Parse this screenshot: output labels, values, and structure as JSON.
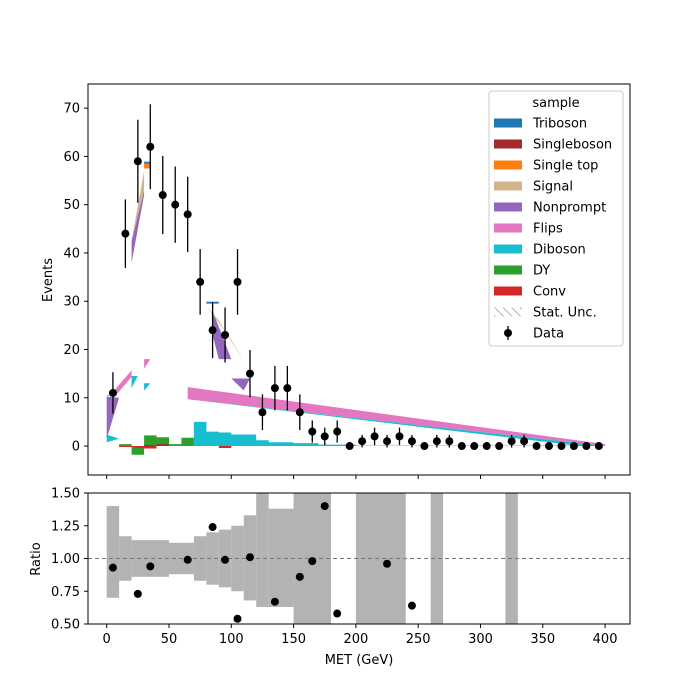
{
  "chart_data": [
    {
      "type": "stacked-bar-with-points",
      "panel": "main",
      "ylabel": "Events",
      "ylim": [
        -6,
        75
      ],
      "yticks": [
        "0",
        "10",
        "20",
        "30",
        "40",
        "50",
        "60",
        "70"
      ],
      "xlim": [
        -15,
        420
      ],
      "bin_width": 10,
      "legend": {
        "title": "sample",
        "placement": "top-right",
        "entries": [
          {
            "label": "Triboson",
            "color": "#1f77b4",
            "kind": "patch"
          },
          {
            "label": "Singleboson",
            "color": "#a52a2a",
            "kind": "patch"
          },
          {
            "label": "Single top",
            "color": "#ff7f0e",
            "kind": "patch"
          },
          {
            "label": "Signal",
            "color": "#d2b48c",
            "kind": "patch"
          },
          {
            "label": "Nonprompt",
            "color": "#9467bd",
            "kind": "patch"
          },
          {
            "label": "Flips",
            "color": "#e377c2",
            "kind": "patch"
          },
          {
            "label": "Diboson",
            "color": "#17becf",
            "kind": "patch"
          },
          {
            "label": "DY",
            "color": "#2ca02c",
            "kind": "patch"
          },
          {
            "label": "Conv",
            "color": "#d62728",
            "kind": "patch"
          },
          {
            "label": "Stat. Unc.",
            "color": "#888888",
            "kind": "hatch"
          },
          {
            "label": "Data",
            "color": "#000000",
            "kind": "marker"
          }
        ]
      },
      "series": [
        {
          "name": "Data",
          "x": [
            5,
            15,
            25,
            35,
            45,
            55,
            65,
            75,
            85,
            95,
            105,
            115,
            125,
            135,
            145,
            155,
            165,
            175,
            185,
            195,
            205,
            215,
            225,
            235,
            245,
            255,
            265,
            275,
            285,
            295,
            305,
            315,
            325,
            335,
            345,
            355,
            365,
            375,
            385,
            395
          ],
          "values": [
            11,
            44,
            59,
            62,
            52,
            50,
            48,
            34,
            24,
            23,
            34,
            15,
            7,
            12,
            12,
            7,
            3,
            2,
            3,
            0,
            1,
            2,
            1,
            2,
            1,
            0,
            1,
            1,
            0,
            0,
            0,
            0,
            1,
            1,
            0,
            0,
            0,
            0,
            0,
            0
          ],
          "errors": [
            4.3,
            7.1,
            8.6,
            8.8,
            8.1,
            7.9,
            7.8,
            6.8,
            5.8,
            5.7,
            6.8,
            4.9,
            3.7,
            4.6,
            4.6,
            3.7,
            2.3,
            1.8,
            2.3,
            0,
            1.3,
            1.8,
            1.3,
            1.8,
            1.3,
            0,
            1.3,
            1.3,
            0,
            0,
            0,
            0,
            1.3,
            1.3,
            0,
            0,
            0,
            0,
            0,
            0
          ]
        }
      ],
      "stack_segments": [
        {
          "sample": "Flips",
          "color": "#e377c2",
          "shape": "band",
          "points": [
            [
              5,
              9.8
            ],
            [
              20,
              14.3
            ],
            [
              20,
              15.7
            ],
            [
              5,
              11.2
            ]
          ]
        },
        {
          "sample": "Flips",
          "color": "#e377c2",
          "shape": "band",
          "points": [
            [
              30,
              16
            ],
            [
              35,
              18
            ],
            [
              30,
              18
            ]
          ]
        },
        {
          "sample": "Flips",
          "color": "#e377c2",
          "shape": "band",
          "points": [
            [
              65,
              12.2
            ],
            [
              400,
              0.4
            ],
            [
              400,
              0
            ],
            [
              65,
              9.7
            ]
          ]
        },
        {
          "sample": "Diboson",
          "color": "#17becf",
          "shape": "band",
          "points": [
            [
              65,
              9.7
            ],
            [
              400,
              0
            ],
            [
              380,
              0
            ],
            [
              65,
              9.7
            ]
          ]
        },
        {
          "sample": "Diboson",
          "color": "#17becf",
          "shape": "steps",
          "points": [
            [
              70,
              9.9
            ],
            [
              70,
              5
            ],
            [
              80,
              5
            ],
            [
              80,
              3
            ],
            [
              90,
              3
            ],
            [
              90,
              2.8
            ],
            [
              100,
              2.8
            ],
            [
              100,
              2.4
            ],
            [
              120,
              2.4
            ],
            [
              120,
              1.2
            ],
            [
              130,
              1.2
            ],
            [
              130,
              0.8
            ],
            [
              150,
              0.8
            ],
            [
              150,
              0.6
            ],
            [
              170,
              0.6
            ],
            [
              170,
              0.3
            ],
            [
              200,
              0.3
            ],
            [
              200,
              0.1
            ],
            [
              380,
              0.1
            ],
            [
              380,
              0
            ],
            [
              400,
              0
            ]
          ]
        },
        {
          "sample": "Diboson",
          "color": "#17becf",
          "shape": "band",
          "points": [
            [
              0,
              0.8
            ],
            [
              10,
              1.5
            ],
            [
              0,
              2.4
            ]
          ]
        },
        {
          "sample": "Diboson",
          "color": "#17becf",
          "shape": "band",
          "points": [
            [
              20,
              12
            ],
            [
              25,
              14.5
            ],
            [
              20,
              14.5
            ]
          ]
        },
        {
          "sample": "Diboson",
          "color": "#17becf",
          "shape": "band",
          "points": [
            [
              30,
              11.5
            ],
            [
              35,
              13
            ],
            [
              30,
              13
            ]
          ]
        },
        {
          "sample": "Nonprompt",
          "color": "#9467bd",
          "shape": "band",
          "points": [
            [
              0,
              1.5
            ],
            [
              10,
              10
            ],
            [
              0,
              10.2
            ]
          ]
        },
        {
          "sample": "Nonprompt",
          "color": "#9467bd",
          "shape": "band",
          "points": [
            [
              20,
              38
            ],
            [
              30,
              52
            ],
            [
              30,
              53
            ],
            [
              20,
              42.5
            ]
          ]
        },
        {
          "sample": "Nonprompt",
          "color": "#9467bd",
          "shape": "band",
          "points": [
            [
              85,
              23
            ],
            [
              90,
              18
            ],
            [
              100,
              18
            ],
            [
              85,
              28
            ]
          ]
        },
        {
          "sample": "Nonprompt",
          "color": "#9467bd",
          "shape": "band",
          "points": [
            [
              100,
              14
            ],
            [
              110,
              11.5
            ],
            [
              115,
              14
            ]
          ]
        },
        {
          "sample": "Signal",
          "color": "#d2b48c",
          "shape": "band",
          "points": [
            [
              0,
              10.2
            ],
            [
              5,
              10.6
            ],
            [
              0,
              10.6
            ]
          ]
        },
        {
          "sample": "Signal",
          "color": "#d2b48c",
          "shape": "band",
          "points": [
            [
              20,
              42.5
            ],
            [
              30,
              57
            ],
            [
              30,
              53
            ]
          ]
        },
        {
          "sample": "Signal",
          "color": "#d2b48c",
          "shape": "band",
          "points": [
            [
              80,
              29
            ],
            [
              90,
              26
            ],
            [
              110,
              17.5
            ],
            [
              100,
              22
            ]
          ]
        },
        {
          "sample": "Single top",
          "color": "#ff7f0e",
          "shape": "band",
          "points": [
            [
              30,
              57.5
            ],
            [
              35,
              57.5
            ],
            [
              35,
              58.5
            ],
            [
              30,
              58.5
            ]
          ]
        },
        {
          "sample": "Triboson",
          "color": "#1f77b4",
          "shape": "band",
          "points": [
            [
              30,
              58.5
            ],
            [
              35,
              58.5
            ],
            [
              35,
              58.9
            ],
            [
              30,
              58.9
            ]
          ]
        },
        {
          "sample": "Triboson",
          "color": "#1f77b4",
          "shape": "band",
          "points": [
            [
              80,
              29.5
            ],
            [
              90,
              29.5
            ],
            [
              90,
              29.9
            ],
            [
              80,
              29.9
            ]
          ]
        },
        {
          "sample": "DY",
          "color": "#2ca02c",
          "shape": "steps",
          "points": [
            [
              10,
              0.4
            ],
            [
              20,
              0.4
            ],
            [
              20,
              -1.8
            ],
            [
              30,
              -1.8
            ],
            [
              30,
              2.2
            ],
            [
              40,
              2.2
            ],
            [
              40,
              1.8
            ],
            [
              50,
              1.8
            ],
            [
              50,
              0.4
            ],
            [
              60,
              0.4
            ],
            [
              60,
              1.7
            ],
            [
              70,
              1.7
            ],
            [
              70,
              0
            ]
          ]
        },
        {
          "sample": "Conv",
          "color": "#d62728",
          "shape": "steps",
          "points": [
            [
              0,
              0
            ],
            [
              10,
              0
            ],
            [
              10,
              -0.2
            ],
            [
              20,
              -0.2
            ],
            [
              30,
              -0.5
            ],
            [
              40,
              -0.5
            ],
            [
              40,
              0
            ],
            [
              90,
              0
            ],
            [
              90,
              -0.4
            ],
            [
              100,
              -0.4
            ],
            [
              100,
              0
            ],
            [
              400,
              0
            ]
          ]
        },
        {
          "sample": "Singleboson",
          "color": "#a52a2a",
          "shape": "steps",
          "points": [
            [
              30,
              0.2
            ],
            [
              40,
              0.2
            ],
            [
              40,
              0.4
            ],
            [
              50,
              0.4
            ],
            [
              50,
              0
            ]
          ]
        }
      ]
    },
    {
      "type": "scatter-with-band",
      "panel": "ratio",
      "xlabel": "MET (GeV)",
      "ylabel": "Ratio",
      "ylim": [
        0.5,
        1.5
      ],
      "yticks": [
        "0.50",
        "0.75",
        "1.00",
        "1.25",
        "1.50"
      ],
      "xticks": [
        "0",
        "50",
        "100",
        "150",
        "200",
        "250",
        "300",
        "350",
        "400"
      ],
      "reference_line": 1.0,
      "band": {
        "color": "#b3b3b3",
        "bins": [
          [
            0,
            10,
            0.7,
            1.4
          ],
          [
            10,
            20,
            0.83,
            1.17
          ],
          [
            20,
            50,
            0.86,
            1.14
          ],
          [
            50,
            70,
            0.88,
            1.12
          ],
          [
            70,
            80,
            0.83,
            1.17
          ],
          [
            80,
            90,
            0.8,
            1.2
          ],
          [
            90,
            100,
            0.78,
            1.22
          ],
          [
            100,
            110,
            0.75,
            1.25
          ],
          [
            110,
            120,
            0.68,
            1.33
          ],
          [
            120,
            130,
            0.63,
            1.5
          ],
          [
            130,
            150,
            0.63,
            1.38
          ],
          [
            150,
            180,
            0.5,
            1.5
          ],
          [
            200,
            240,
            0.5,
            1.5
          ],
          [
            260,
            270,
            0.5,
            1.5
          ],
          [
            320,
            330,
            0.5,
            1.5
          ]
        ]
      },
      "x": [
        5,
        25,
        35,
        65,
        85,
        95,
        105,
        115,
        135,
        155,
        165,
        175,
        185,
        225,
        245
      ],
      "values": [
        0.93,
        0.73,
        0.94,
        0.99,
        1.24,
        0.99,
        0.54,
        1.01,
        0.67,
        0.86,
        0.98,
        1.4,
        0.58,
        0.96,
        0.64
      ]
    }
  ]
}
